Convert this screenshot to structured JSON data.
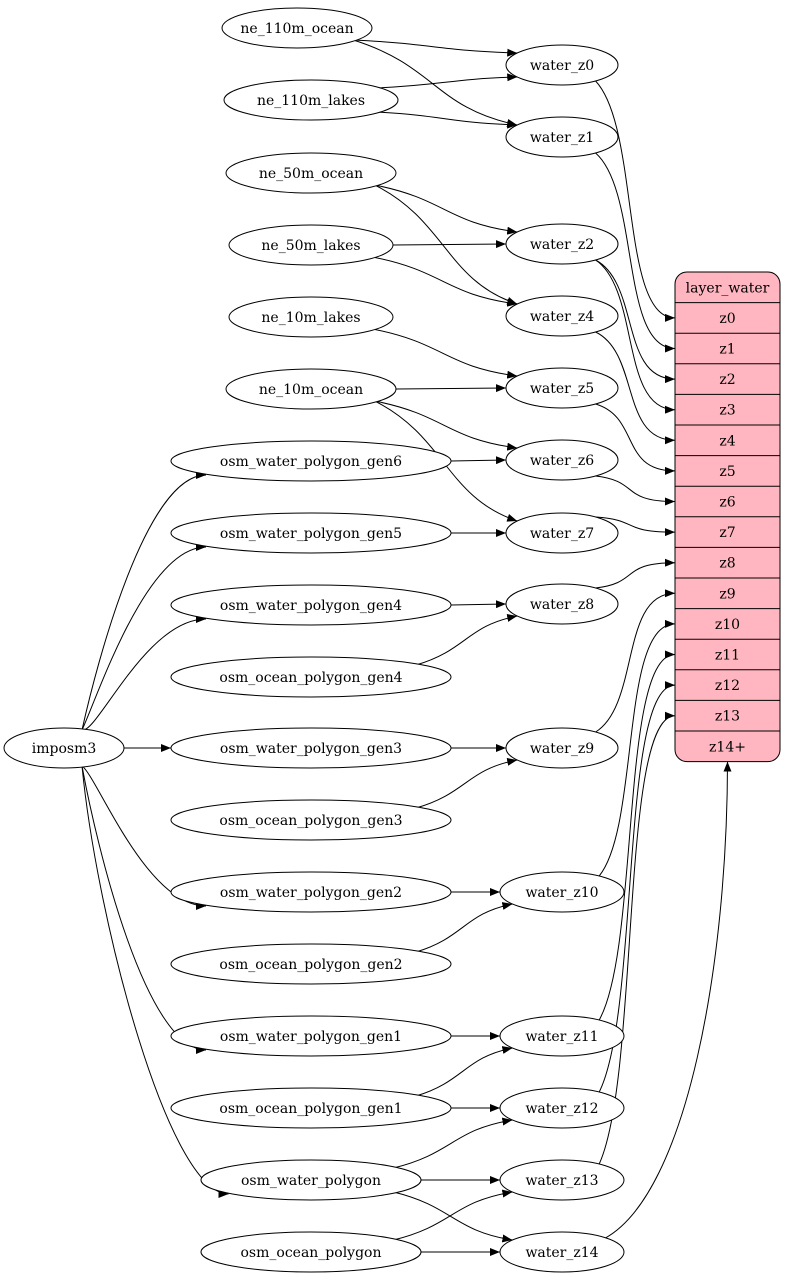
{
  "record": {
    "title": "layer_water",
    "fields": [
      "z0",
      "z1",
      "z2",
      "z3",
      "z4",
      "z5",
      "z6",
      "z7",
      "z8",
      "z9",
      "z10",
      "z11",
      "z12",
      "z13",
      "z14+"
    ],
    "fill": "#ffb6c1"
  },
  "nodes": [
    {
      "id": "ne_110m_ocean",
      "label": "ne_110m_ocean"
    },
    {
      "id": "ne_110m_lakes",
      "label": "ne_110m_lakes"
    },
    {
      "id": "ne_50m_ocean",
      "label": "ne_50m_ocean"
    },
    {
      "id": "ne_50m_lakes",
      "label": "ne_50m_lakes"
    },
    {
      "id": "ne_10m_lakes",
      "label": "ne_10m_lakes"
    },
    {
      "id": "ne_10m_ocean",
      "label": "ne_10m_ocean"
    },
    {
      "id": "wg6",
      "label": "osm_water_polygon_gen6"
    },
    {
      "id": "wg5",
      "label": "osm_water_polygon_gen5"
    },
    {
      "id": "wg4",
      "label": "osm_water_polygon_gen4"
    },
    {
      "id": "og4",
      "label": "osm_ocean_polygon_gen4"
    },
    {
      "id": "imposm3",
      "label": "imposm3"
    },
    {
      "id": "wg3",
      "label": "osm_water_polygon_gen3"
    },
    {
      "id": "og3",
      "label": "osm_ocean_polygon_gen3"
    },
    {
      "id": "wg2",
      "label": "osm_water_polygon_gen2"
    },
    {
      "id": "og2",
      "label": "osm_ocean_polygon_gen2"
    },
    {
      "id": "wg1",
      "label": "osm_water_polygon_gen1"
    },
    {
      "id": "og1",
      "label": "osm_ocean_polygon_gen1"
    },
    {
      "id": "wp",
      "label": "osm_water_polygon"
    },
    {
      "id": "op",
      "label": "osm_ocean_polygon"
    },
    {
      "id": "z0",
      "label": "water_z0"
    },
    {
      "id": "z1",
      "label": "water_z1"
    },
    {
      "id": "z2",
      "label": "water_z2"
    },
    {
      "id": "z4",
      "label": "water_z4"
    },
    {
      "id": "z5",
      "label": "water_z5"
    },
    {
      "id": "z6",
      "label": "water_z6"
    },
    {
      "id": "z7",
      "label": "water_z7"
    },
    {
      "id": "z8",
      "label": "water_z8"
    },
    {
      "id": "z9",
      "label": "water_z9"
    },
    {
      "id": "z10",
      "label": "water_z10"
    },
    {
      "id": "z11",
      "label": "water_z11"
    },
    {
      "id": "z12",
      "label": "water_z12"
    },
    {
      "id": "z13",
      "label": "water_z13"
    },
    {
      "id": "z14",
      "label": "water_z14"
    }
  ],
  "edges": [
    [
      "ne_110m_ocean",
      "z0"
    ],
    [
      "ne_110m_ocean",
      "z1"
    ],
    [
      "ne_110m_lakes",
      "z0"
    ],
    [
      "ne_110m_lakes",
      "z1"
    ],
    [
      "ne_50m_ocean",
      "z2"
    ],
    [
      "ne_50m_ocean",
      "z4"
    ],
    [
      "ne_50m_lakes",
      "z2"
    ],
    [
      "ne_50m_lakes",
      "z4"
    ],
    [
      "ne_10m_lakes",
      "z5"
    ],
    [
      "ne_10m_ocean",
      "z5"
    ],
    [
      "ne_10m_ocean",
      "z6"
    ],
    [
      "ne_10m_ocean",
      "z7"
    ],
    [
      "wg6",
      "z6"
    ],
    [
      "wg5",
      "z7"
    ],
    [
      "wg4",
      "z8"
    ],
    [
      "og4",
      "z8"
    ],
    [
      "wg3",
      "z9"
    ],
    [
      "og3",
      "z9"
    ],
    [
      "wg2",
      "z10"
    ],
    [
      "og2",
      "z10"
    ],
    [
      "wg1",
      "z11"
    ],
    [
      "og1",
      "z11"
    ],
    [
      "og1",
      "z12"
    ],
    [
      "wp",
      "z12"
    ],
    [
      "wp",
      "z13"
    ],
    [
      "wp",
      "z14"
    ],
    [
      "op",
      "z13"
    ],
    [
      "op",
      "z14"
    ],
    [
      "imposm3",
      "wg6"
    ],
    [
      "imposm3",
      "wg5"
    ],
    [
      "imposm3",
      "wg4"
    ],
    [
      "imposm3",
      "wg3"
    ],
    [
      "imposm3",
      "wg2"
    ],
    [
      "imposm3",
      "wg1"
    ],
    [
      "imposm3",
      "wp"
    ],
    [
      "z0",
      "layer:z0"
    ],
    [
      "z1",
      "layer:z1"
    ],
    [
      "z2",
      "layer:z2"
    ],
    [
      "z2",
      "layer:z3"
    ],
    [
      "z4",
      "layer:z4"
    ],
    [
      "z5",
      "layer:z5"
    ],
    [
      "z6",
      "layer:z6"
    ],
    [
      "z7",
      "layer:z7"
    ],
    [
      "z8",
      "layer:z8"
    ],
    [
      "z9",
      "layer:z9"
    ],
    [
      "z10",
      "layer:z10"
    ],
    [
      "z11",
      "layer:z11"
    ],
    [
      "z12",
      "layer:z12"
    ],
    [
      "z13",
      "layer:z13"
    ],
    [
      "z14",
      "layer:z14+"
    ]
  ]
}
